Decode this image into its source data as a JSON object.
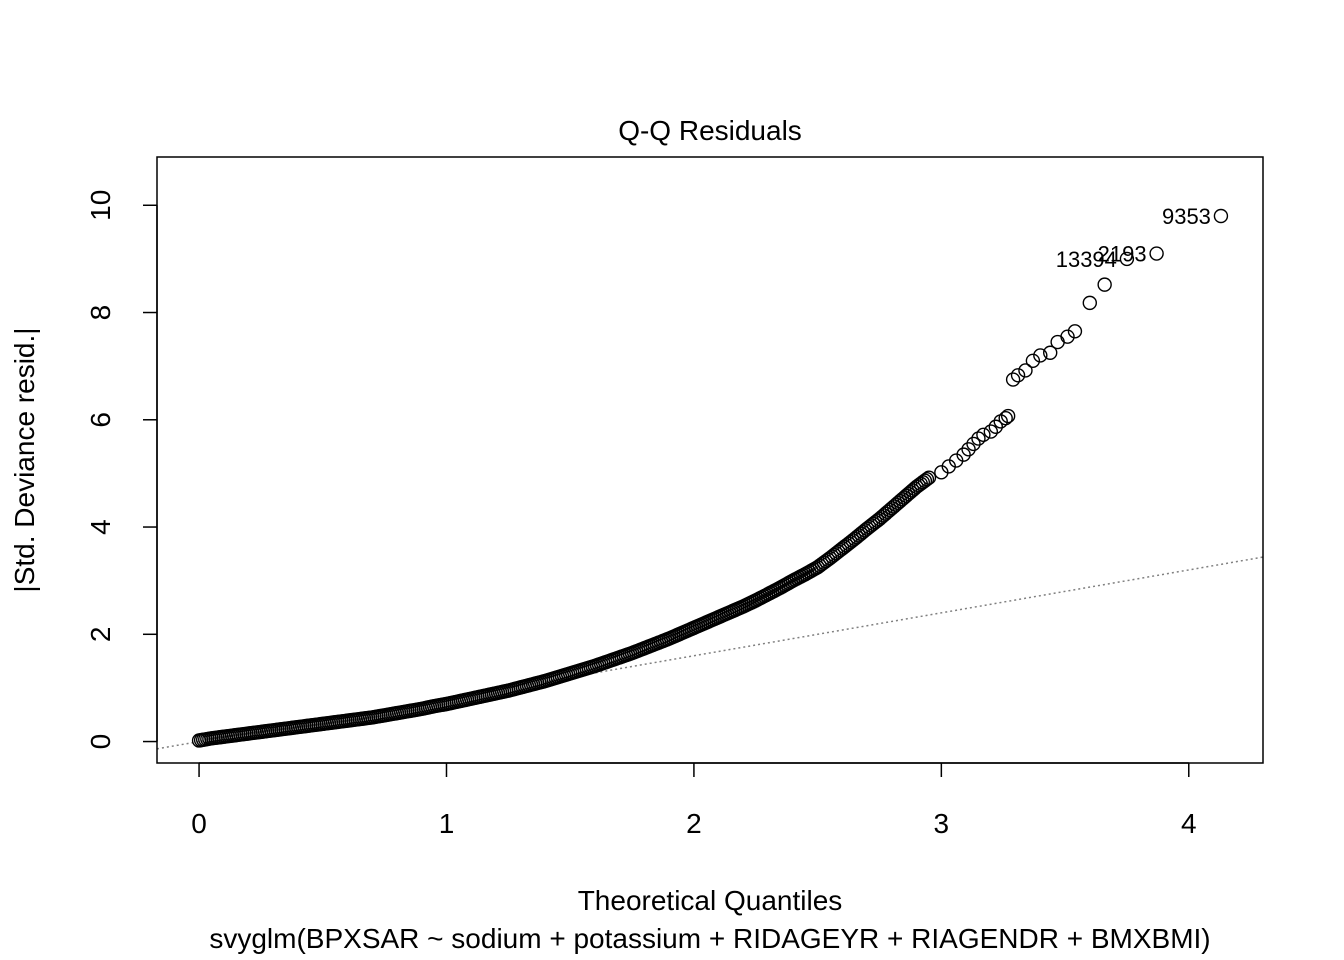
{
  "chart_data": {
    "type": "scatter",
    "title": "Q-Q Residuals",
    "xlabel": "Theoretical Quantiles",
    "ylabel": "|Std. Deviance resid.|",
    "subtitle": "svyglm(BPXSAR ~ sodium + potassium + RIDAGEYR + RIAGENDR + BMXBMI)",
    "xlim": [
      -0.17,
      4.3
    ],
    "ylim": [
      -0.4,
      10.9
    ],
    "x_ticks": [
      0,
      1,
      2,
      3,
      4
    ],
    "y_ticks": [
      0,
      2,
      4,
      6,
      8,
      10
    ],
    "x_tick_labels": [
      "0",
      "1",
      "2",
      "3",
      "4"
    ],
    "y_tick_labels": [
      "0",
      "2",
      "4",
      "6",
      "8",
      "10"
    ],
    "grid": false,
    "reference_line": {
      "intercept": 0.0,
      "slope": 0.8,
      "style": "dotted",
      "color": "#808080"
    },
    "curve_points": [
      [
        0.0,
        0.02
      ],
      [
        0.05,
        0.06
      ],
      [
        0.1,
        0.09
      ],
      [
        0.15,
        0.12
      ],
      [
        0.2,
        0.15
      ],
      [
        0.25,
        0.18
      ],
      [
        0.3,
        0.21
      ],
      [
        0.35,
        0.24
      ],
      [
        0.4,
        0.27
      ],
      [
        0.45,
        0.3
      ],
      [
        0.5,
        0.33
      ],
      [
        0.55,
        0.36
      ],
      [
        0.6,
        0.39
      ],
      [
        0.65,
        0.42
      ],
      [
        0.7,
        0.45
      ],
      [
        0.75,
        0.49
      ],
      [
        0.8,
        0.53
      ],
      [
        0.85,
        0.57
      ],
      [
        0.9,
        0.61
      ],
      [
        0.95,
        0.66
      ],
      [
        1.0,
        0.7
      ],
      [
        1.05,
        0.75
      ],
      [
        1.1,
        0.8
      ],
      [
        1.15,
        0.85
      ],
      [
        1.2,
        0.9
      ],
      [
        1.25,
        0.95
      ],
      [
        1.3,
        1.01
      ],
      [
        1.35,
        1.07
      ],
      [
        1.4,
        1.13
      ],
      [
        1.45,
        1.2
      ],
      [
        1.5,
        1.27
      ],
      [
        1.55,
        1.34
      ],
      [
        1.6,
        1.41
      ],
      [
        1.65,
        1.49
      ],
      [
        1.7,
        1.57
      ],
      [
        1.75,
        1.65
      ],
      [
        1.8,
        1.74
      ],
      [
        1.85,
        1.83
      ],
      [
        1.9,
        1.92
      ],
      [
        1.95,
        2.02
      ],
      [
        2.0,
        2.12
      ],
      [
        2.05,
        2.22
      ],
      [
        2.1,
        2.32
      ],
      [
        2.15,
        2.42
      ],
      [
        2.2,
        2.52
      ],
      [
        2.25,
        2.63
      ],
      [
        2.3,
        2.75
      ],
      [
        2.35,
        2.87
      ],
      [
        2.4,
        3.0
      ],
      [
        2.45,
        3.12
      ],
      [
        2.5,
        3.25
      ],
      [
        2.55,
        3.42
      ],
      [
        2.6,
        3.6
      ],
      [
        2.65,
        3.78
      ],
      [
        2.7,
        3.97
      ],
      [
        2.75,
        4.15
      ],
      [
        2.8,
        4.35
      ],
      [
        2.85,
        4.55
      ],
      [
        2.9,
        4.75
      ],
      [
        2.95,
        4.92
      ]
    ],
    "outlier_points": [
      [
        3.0,
        5.02
      ],
      [
        3.03,
        5.13
      ],
      [
        3.06,
        5.24
      ],
      [
        3.09,
        5.35
      ],
      [
        3.11,
        5.45
      ],
      [
        3.13,
        5.55
      ],
      [
        3.15,
        5.65
      ],
      [
        3.17,
        5.72
      ],
      [
        3.2,
        5.78
      ],
      [
        3.22,
        5.87
      ],
      [
        3.24,
        5.97
      ],
      [
        3.26,
        6.03
      ],
      [
        3.27,
        6.07
      ],
      [
        3.29,
        6.75
      ],
      [
        3.31,
        6.83
      ],
      [
        3.34,
        6.92
      ],
      [
        3.37,
        7.1
      ],
      [
        3.4,
        7.2
      ],
      [
        3.44,
        7.25
      ],
      [
        3.47,
        7.45
      ],
      [
        3.51,
        7.55
      ],
      [
        3.54,
        7.65
      ],
      [
        3.6,
        8.18
      ],
      [
        3.66,
        8.52
      ],
      [
        3.75,
        9.0
      ],
      [
        3.87,
        9.1
      ],
      [
        4.13,
        9.8
      ]
    ],
    "labeled_points": [
      {
        "label": "9353",
        "x": 4.13,
        "y": 9.8
      },
      {
        "label": "2193",
        "x": 3.87,
        "y": 9.1
      },
      {
        "label": "13394",
        "x": 3.75,
        "y": 9.0
      }
    ]
  }
}
